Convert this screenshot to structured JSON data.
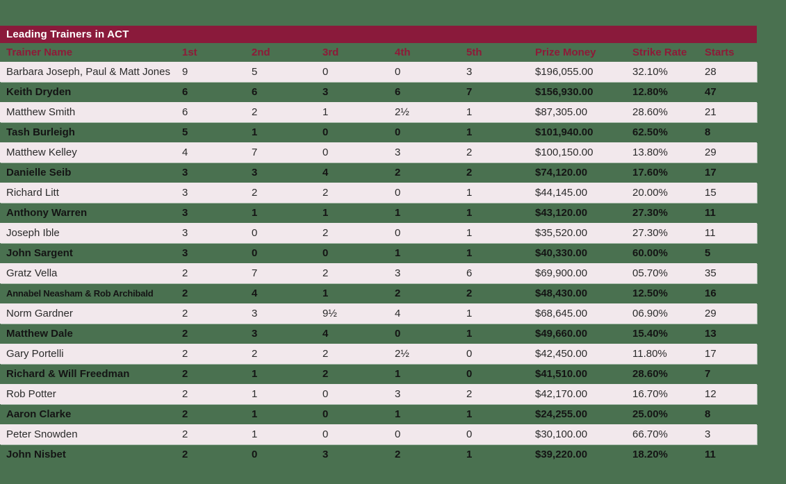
{
  "colors": {
    "background_green": "#4A7150",
    "header_bar_maroon": "#8A1A3B",
    "column_header_text": "#8E1A38",
    "row_light_pink": "#F2E8EC",
    "row_text_dark": "#2B2B2B",
    "title_text": "#FFFFFF"
  },
  "table": {
    "title": "Leading Trainers in ACT",
    "columns": [
      "Trainer Name",
      "1st",
      "2nd",
      "3rd",
      "4th",
      "5th",
      "Prize Money",
      "Strike Rate",
      "Starts"
    ],
    "rows": [
      {
        "name": "Barbara Joseph, Paul & Matt Jones",
        "first": "9",
        "second": "5",
        "third": "0",
        "fourth": "0",
        "fifth": "3",
        "prize_money": "$196,055.00",
        "strike_rate": "32.10%",
        "starts": "28"
      },
      {
        "name": "Keith Dryden",
        "first": "6",
        "second": "6",
        "third": "3",
        "fourth": "6",
        "fifth": "7",
        "prize_money": "$156,930.00",
        "strike_rate": "12.80%",
        "starts": "47"
      },
      {
        "name": "Matthew Smith",
        "first": "6",
        "second": "2",
        "third": "1",
        "fourth": "2½",
        "fifth": "1",
        "prize_money": "$87,305.00",
        "strike_rate": "28.60%",
        "starts": "21"
      },
      {
        "name": "Tash Burleigh",
        "first": "5",
        "second": "1",
        "third": "0",
        "fourth": "0",
        "fifth": "1",
        "prize_money": "$101,940.00",
        "strike_rate": "62.50%",
        "starts": "8"
      },
      {
        "name": "Matthew Kelley",
        "first": "4",
        "second": "7",
        "third": "0",
        "fourth": "3",
        "fifth": "2",
        "prize_money": "$100,150.00",
        "strike_rate": "13.80%",
        "starts": "29"
      },
      {
        "name": "Danielle Seib",
        "first": "3",
        "second": "3",
        "third": "4",
        "fourth": "2",
        "fifth": "2",
        "prize_money": "$74,120.00",
        "strike_rate": "17.60%",
        "starts": "17"
      },
      {
        "name": "Richard Litt",
        "first": "3",
        "second": "2",
        "third": "2",
        "fourth": "0",
        "fifth": "1",
        "prize_money": "$44,145.00",
        "strike_rate": "20.00%",
        "starts": "15"
      },
      {
        "name": "Anthony Warren",
        "first": "3",
        "second": "1",
        "third": "1",
        "fourth": "1",
        "fifth": "1",
        "prize_money": "$43,120.00",
        "strike_rate": "27.30%",
        "starts": "11"
      },
      {
        "name": "Joseph Ible",
        "first": "3",
        "second": "0",
        "third": "2",
        "fourth": "0",
        "fifth": "1",
        "prize_money": "$35,520.00",
        "strike_rate": "27.30%",
        "starts": "11"
      },
      {
        "name": "John Sargent",
        "first": "3",
        "second": "0",
        "third": "0",
        "fourth": "1",
        "fifth": "1",
        "prize_money": "$40,330.00",
        "strike_rate": "60.00%",
        "starts": "5"
      },
      {
        "name": "Gratz Vella",
        "first": "2",
        "second": "7",
        "third": "2",
        "fourth": "3",
        "fifth": "6",
        "prize_money": "$69,900.00",
        "strike_rate": "05.70%",
        "starts": "35"
      },
      {
        "name": "Annabel Neasham & Rob Archibald",
        "first": "2",
        "second": "4",
        "third": "1",
        "fourth": "2",
        "fifth": "2",
        "prize_money": "$48,430.00",
        "strike_rate": "12.50%",
        "starts": "16"
      },
      {
        "name": "Norm Gardner",
        "first": "2",
        "second": "3",
        "third": "9½",
        "fourth": "4",
        "fifth": "1",
        "prize_money": "$68,645.00",
        "strike_rate": "06.90%",
        "starts": "29"
      },
      {
        "name": "Matthew Dale",
        "first": "2",
        "second": "3",
        "third": "4",
        "fourth": "0",
        "fifth": "1",
        "prize_money": "$49,660.00",
        "strike_rate": "15.40%",
        "starts": "13"
      },
      {
        "name": "Gary Portelli",
        "first": "2",
        "second": "2",
        "third": "2",
        "fourth": "2½",
        "fifth": "0",
        "prize_money": "$42,450.00",
        "strike_rate": "11.80%",
        "starts": "17"
      },
      {
        "name": "Richard & Will Freedman",
        "first": "2",
        "second": "1",
        "third": "2",
        "fourth": "1",
        "fifth": "0",
        "prize_money": "$41,510.00",
        "strike_rate": "28.60%",
        "starts": "7"
      },
      {
        "name": "Rob Potter",
        "first": "2",
        "second": "1",
        "third": "0",
        "fourth": "3",
        "fifth": "2",
        "prize_money": "$42,170.00",
        "strike_rate": "16.70%",
        "starts": "12"
      },
      {
        "name": "Aaron Clarke",
        "first": "2",
        "second": "1",
        "third": "0",
        "fourth": "1",
        "fifth": "1",
        "prize_money": "$24,255.00",
        "strike_rate": "25.00%",
        "starts": "8"
      },
      {
        "name": "Peter Snowden",
        "first": "2",
        "second": "1",
        "third": "0",
        "fourth": "0",
        "fifth": "0",
        "prize_money": "$30,100.00",
        "strike_rate": "66.70%",
        "starts": "3"
      },
      {
        "name": "John Nisbet",
        "first": "2",
        "second": "0",
        "third": "3",
        "fourth": "2",
        "fifth": "1",
        "prize_money": "$39,220.00",
        "strike_rate": "18.20%",
        "starts": "11"
      }
    ]
  },
  "chart_data": {
    "type": "table",
    "title": "Leading Trainers in ACT",
    "columns": [
      "Trainer Name",
      "1st",
      "2nd",
      "3rd",
      "4th",
      "5th",
      "Prize Money",
      "Strike Rate",
      "Starts"
    ]
  }
}
